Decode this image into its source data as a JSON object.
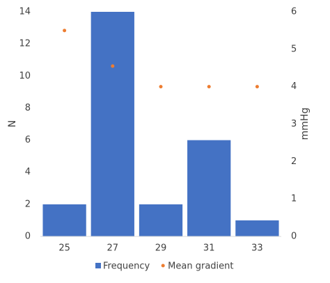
{
  "chart_data": {
    "type": "bar",
    "categories": [
      "25",
      "27",
      "29",
      "31",
      "33"
    ],
    "series": [
      {
        "name": "Frequency",
        "type": "bar",
        "color": "#4472c4",
        "values": [
          2,
          14,
          2,
          6,
          1
        ]
      },
      {
        "name": "Mean gradient",
        "type": "scatter",
        "axis": "y2",
        "color": "#ed7d31",
        "values": [
          5.5,
          4.55,
          4,
          4,
          4
        ]
      }
    ],
    "ylabel": "N",
    "y2label": "mmHg",
    "ylim": [
      0,
      14
    ],
    "yticks": [
      0,
      2,
      4,
      6,
      8,
      10,
      12,
      14
    ],
    "y2lim": [
      0,
      6
    ],
    "y2ticks": [
      0,
      1,
      2,
      3,
      4,
      5,
      6
    ],
    "grid": false,
    "legend": "bottom"
  }
}
